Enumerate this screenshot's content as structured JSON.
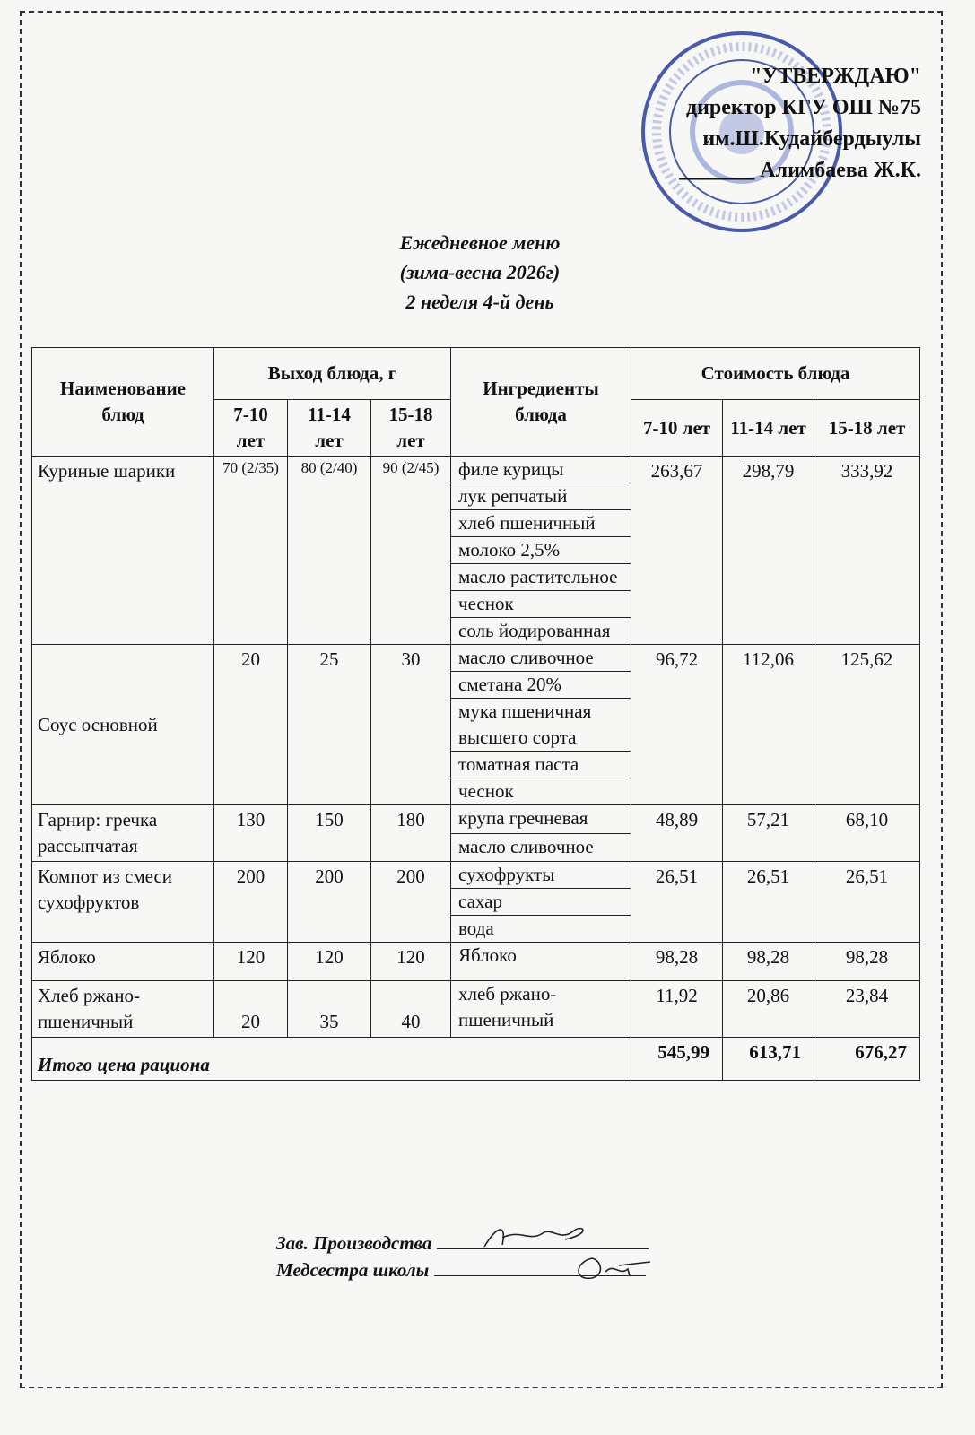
{
  "approval": {
    "line1": "\"УТВЕРЖДАЮ\"",
    "line2": "директор КГУ ОШ №75",
    "line3": "им.Ш.Кудайбердыулы",
    "line4": "_______ Алимбаева Ж.К."
  },
  "stamp": {
    "text": "АЛМАТЫ ҚАЛАСЫ БІЛІМ БАСҚАРМАСЫНЫҢ \"ШӘКӘРІМ ҚҰДАЙБЕРДІҰЛЫ АТЫНДАҒЫ №75 ЖАЛПЫ БІЛІМ БЕРЕТІН МЕКТЕП\" КОММУНАЛДЫҚ МЕМЛЕКЕТТІК МЕКЕМЕСІ",
    "color": "#2a3fa0"
  },
  "title": {
    "line1": "Ежедневное меню",
    "line2": "(зима-весна 2026г)",
    "line3": "2 неделя 4-й день"
  },
  "table": {
    "headers": {
      "name": "Наименование блюд",
      "yield": "Выход блюда, г",
      "ingredients": "Ингредиенты блюда",
      "cost": "Стоимость блюда",
      "ages": [
        "7-10 лет",
        "11-14 лет",
        "15-18 лет"
      ]
    },
    "rows": [
      {
        "name": "Куриные шарики",
        "yields": [
          "70 (2/35)",
          "80 (2/40)",
          "90 (2/45)"
        ],
        "ingredients": [
          "филе курицы",
          "лук репчатый",
          "хлеб пшеничный",
          "молоко 2,5%",
          "масло растительное",
          "чеснок",
          "соль йодированная"
        ],
        "costs": [
          "263,67",
          "298,79",
          "333,92"
        ]
      },
      {
        "name": "Соус основной",
        "yields": [
          "20",
          "25",
          "30"
        ],
        "ingredients": [
          "масло сливочное",
          "сметана 20%",
          "мука пшеничная высшего сорта",
          "томатная паста",
          "чеснок"
        ],
        "costs": [
          "96,72",
          "112,06",
          "125,62"
        ]
      },
      {
        "name": "Гарнир: гречка рассыпчатая",
        "yields": [
          "130",
          "150",
          "180"
        ],
        "ingredients": [
          "крупа гречневая",
          "масло сливочное"
        ],
        "costs": [
          "48,89",
          "57,21",
          "68,10"
        ]
      },
      {
        "name": "Компот из смеси сухофруктов",
        "yields": [
          "200",
          "200",
          "200"
        ],
        "ingredients": [
          "сухофрукты",
          "сахар",
          "вода"
        ],
        "costs": [
          "26,51",
          "26,51",
          "26,51"
        ]
      },
      {
        "name": "Яблоко",
        "yields": [
          "120",
          "120",
          "120"
        ],
        "ingredients": [
          "Яблоко"
        ],
        "costs": [
          "98,28",
          "98,28",
          "98,28"
        ]
      },
      {
        "name": "Хлеб ржано-пшеничный",
        "yields": [
          "20",
          "35",
          "40"
        ],
        "ingredients": [
          "хлеб ржано-пшеничный"
        ],
        "costs": [
          "11,92",
          "20,86",
          "23,84"
        ]
      }
    ],
    "total": {
      "label": "Итого цена рациона",
      "costs": [
        "545,99",
        "613,71",
        "676,27"
      ]
    }
  },
  "signatures": {
    "production": "Зав. Производства",
    "nurse": "Медсестра школы"
  }
}
